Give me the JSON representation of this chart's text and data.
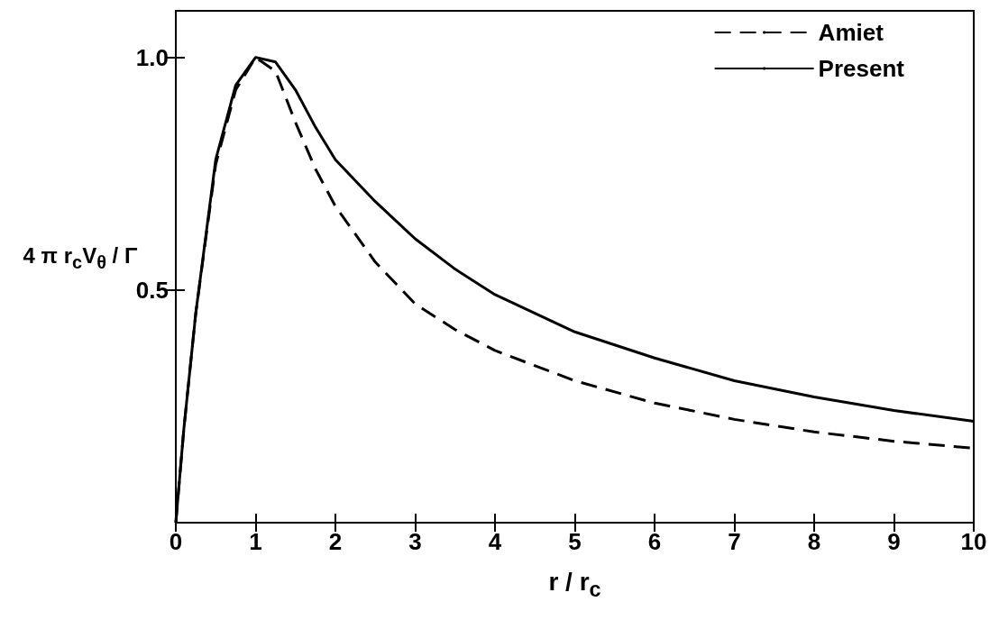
{
  "chart_data": {
    "type": "line",
    "xlabel": "r / r$_{c}$",
    "ylabel": "4 π r$_{c}$V$_{θ}$ / Γ",
    "xlim": [
      0,
      10
    ],
    "xticks": [
      0,
      1,
      2,
      3,
      4,
      5,
      6,
      7,
      8,
      9,
      10
    ],
    "ylim": [
      0,
      1.1
    ],
    "yticks": [
      {
        "value": 0.5,
        "label": "0.5"
      },
      {
        "value": 1,
        "label": "1.0"
      }
    ],
    "grid": false,
    "legend": "top right",
    "marker": "none",
    "series": [
      {
        "name": "Amiet",
        "color": "#000000",
        "line_style": "dashed",
        "x": [
          0,
          0.1,
          0.25,
          0.5,
          0.75,
          1,
          1.25,
          1.5,
          1.75,
          2,
          2.5,
          3,
          3.5,
          4,
          5,
          6,
          7,
          8,
          9,
          10
        ],
        "values": [
          0,
          0.2,
          0.45,
          0.77,
          0.93,
          1,
          0.97,
          0.86,
          0.76,
          0.68,
          0.56,
          0.47,
          0.415,
          0.37,
          0.305,
          0.257,
          0.222,
          0.195,
          0.175,
          0.16
        ]
      },
      {
        "name": "Present",
        "color": "#000000",
        "line_style": "solid",
        "x": [
          0,
          0.1,
          0.25,
          0.5,
          0.75,
          1,
          1.25,
          1.5,
          1.75,
          2,
          2.5,
          3,
          3.5,
          4,
          5,
          6,
          7,
          8,
          9,
          10
        ],
        "values": [
          0,
          0.2,
          0.45,
          0.78,
          0.94,
          1,
          0.99,
          0.93,
          0.85,
          0.78,
          0.69,
          0.61,
          0.545,
          0.49,
          0.41,
          0.354,
          0.305,
          0.27,
          0.241,
          0.218
        ]
      }
    ]
  }
}
